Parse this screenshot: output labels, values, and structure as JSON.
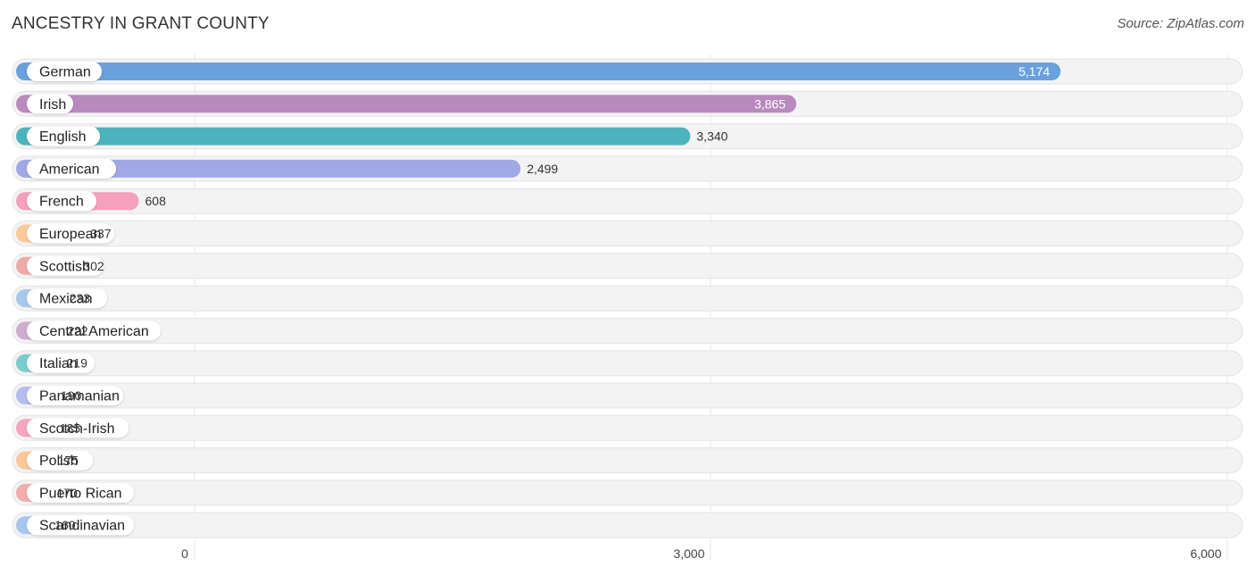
{
  "title": "ANCESTRY IN GRANT COUNTY",
  "source": "Source: ZipAtlas.com",
  "chart_data": {
    "type": "bar",
    "orientation": "horizontal",
    "title": "ANCESTRY IN GRANT COUNTY",
    "xlim": [
      0,
      6000
    ],
    "xticks": [
      0,
      3000,
      6000
    ],
    "xtick_labels": [
      "0",
      "3,000",
      "6,000"
    ],
    "grid": true,
    "categories": [
      "German",
      "Irish",
      "English",
      "American",
      "French",
      "European",
      "Scottish",
      "Mexican",
      "Central American",
      "Italian",
      "Panamanian",
      "Scotch-Irish",
      "Polish",
      "Puerto Rican",
      "Scandinavian"
    ],
    "values": [
      5174,
      3865,
      3340,
      2499,
      608,
      337,
      302,
      233,
      222,
      219,
      190,
      185,
      175,
      170,
      160
    ],
    "value_labels": [
      "5,174",
      "3,865",
      "3,340",
      "2,499",
      "608",
      "337",
      "302",
      "233",
      "222",
      "219",
      "190",
      "185",
      "175",
      "170",
      "160"
    ],
    "colors": [
      "#6aa1dc",
      "#b98abd",
      "#4db3bd",
      "#a0a8e6",
      "#f5a0bc",
      "#fbc99a",
      "#efaaa8",
      "#a8c8ec",
      "#cfadd0",
      "#7ccbcf",
      "#b6bdee",
      "#f7a5c0",
      "#fbc89a",
      "#f2aeab",
      "#a9c7ee"
    ]
  }
}
